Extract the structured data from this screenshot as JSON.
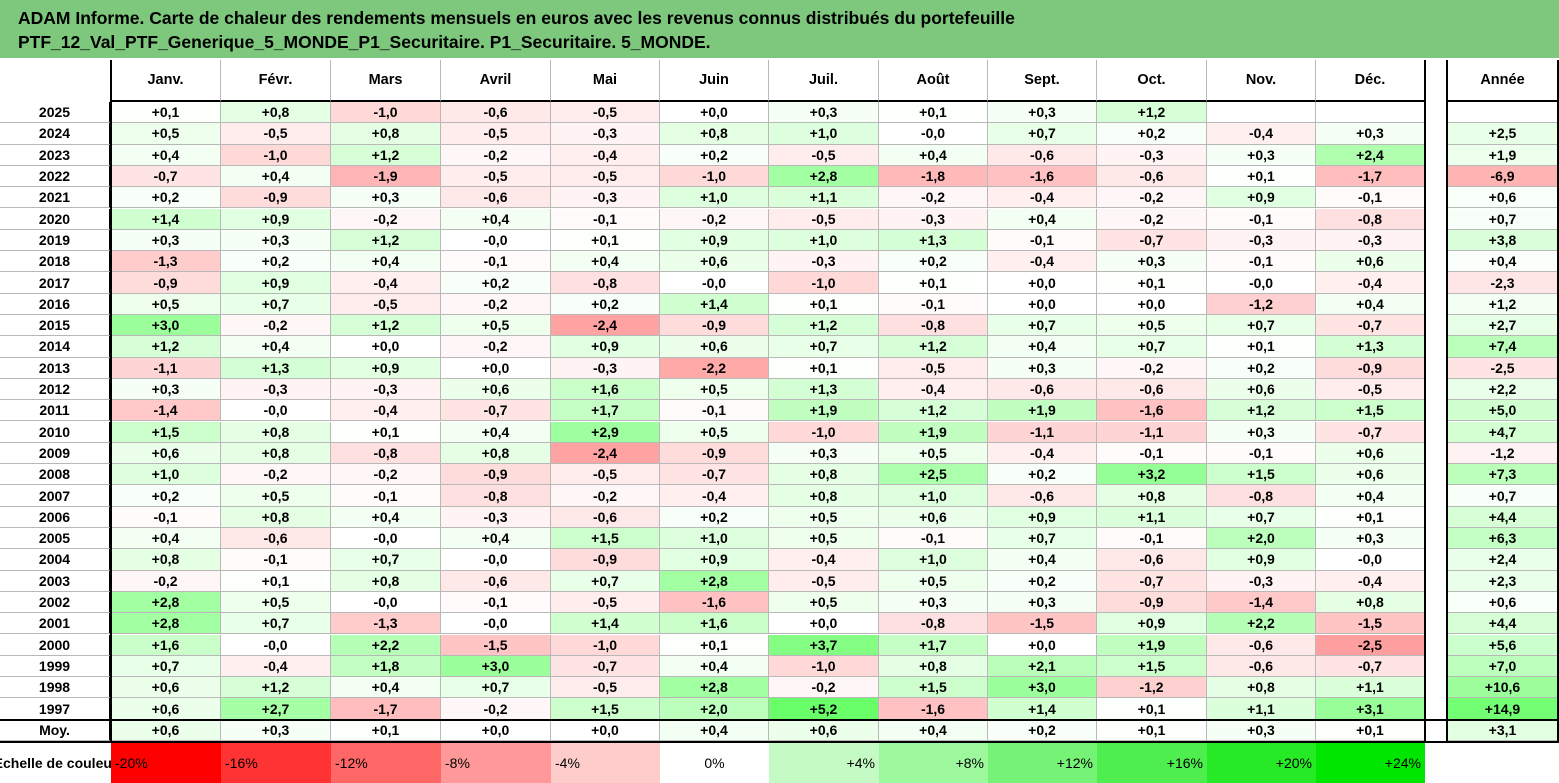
{
  "title": {
    "line1": "ADAM Informe. Carte de chaleur des rendements mensuels en euros avec les revenus connus distribués du portefeuille",
    "line2": "PTF_12_Val_PTF_Generique_5_MONDE_P1_Securitaire. P1_Securitaire. 5_MONDE."
  },
  "colors": {
    "header_bg": "#7ec87e",
    "negative": "#ff0000",
    "positive": "#00e600",
    "neutral": "#ffffff"
  },
  "chart_data": {
    "type": "heatmap",
    "columns": [
      "Janv.",
      "Févr.",
      "Mars",
      "Avril",
      "Mai",
      "Juin",
      "Juil.",
      "Août",
      "Sept.",
      "Oct.",
      "Nov.",
      "Déc."
    ],
    "year_column_label": "Année",
    "rows": [
      {
        "label": "2025",
        "months": [
          "+0,1",
          "+0,8",
          "-1,0",
          "-0,6",
          "-0,5",
          "+0,0",
          "+0,3",
          "+0,1",
          "+0,3",
          "+1,2",
          "",
          ""
        ],
        "year": ""
      },
      {
        "label": "2024",
        "months": [
          "+0,5",
          "-0,5",
          "+0,8",
          "-0,5",
          "-0,3",
          "+0,8",
          "+1,0",
          "-0,0",
          "+0,7",
          "+0,2",
          "-0,4",
          "+0,3"
        ],
        "year": "+2,5"
      },
      {
        "label": "2023",
        "months": [
          "+0,4",
          "-1,0",
          "+1,2",
          "-0,2",
          "-0,4",
          "+0,2",
          "-0,5",
          "+0,4",
          "-0,6",
          "-0,3",
          "+0,3",
          "+2,4"
        ],
        "year": "+1,9"
      },
      {
        "label": "2022",
        "months": [
          "-0,7",
          "+0,4",
          "-1,9",
          "-0,5",
          "-0,5",
          "-1,0",
          "+2,8",
          "-1,8",
          "-1,6",
          "-0,6",
          "+0,1",
          "-1,7"
        ],
        "year": "-6,9"
      },
      {
        "label": "2021",
        "months": [
          "+0,2",
          "-0,9",
          "+0,3",
          "-0,6",
          "-0,3",
          "+1,0",
          "+1,1",
          "-0,2",
          "-0,4",
          "-0,2",
          "+0,9",
          "-0,1"
        ],
        "year": "+0,6"
      },
      {
        "label": "2020",
        "months": [
          "+1,4",
          "+0,9",
          "-0,2",
          "+0,4",
          "-0,1",
          "-0,2",
          "-0,5",
          "-0,3",
          "+0,4",
          "-0,2",
          "-0,1",
          "-0,8"
        ],
        "year": "+0,7"
      },
      {
        "label": "2019",
        "months": [
          "+0,3",
          "+0,3",
          "+1,2",
          "-0,0",
          "+0,1",
          "+0,9",
          "+1,0",
          "+1,3",
          "-0,1",
          "-0,7",
          "-0,3",
          "-0,3"
        ],
        "year": "+3,8"
      },
      {
        "label": "2018",
        "months": [
          "-1,3",
          "+0,2",
          "+0,4",
          "-0,1",
          "+0,4",
          "+0,6",
          "-0,3",
          "+0,2",
          "-0,4",
          "+0,3",
          "-0,1",
          "+0,6"
        ],
        "year": "+0,4"
      },
      {
        "label": "2017",
        "months": [
          "-0,9",
          "+0,9",
          "-0,4",
          "+0,2",
          "-0,8",
          "-0,0",
          "-1,0",
          "+0,1",
          "+0,0",
          "+0,1",
          "-0,0",
          "-0,4"
        ],
        "year": "-2,3"
      },
      {
        "label": "2016",
        "months": [
          "+0,5",
          "+0,7",
          "-0,5",
          "-0,2",
          "+0,2",
          "+1,4",
          "+0,1",
          "-0,1",
          "+0,0",
          "+0,0",
          "-1,2",
          "+0,4"
        ],
        "year": "+1,2"
      },
      {
        "label": "2015",
        "months": [
          "+3,0",
          "-0,2",
          "+1,2",
          "+0,5",
          "-2,4",
          "-0,9",
          "+1,2",
          "-0,8",
          "+0,7",
          "+0,5",
          "+0,7",
          "-0,7"
        ],
        "year": "+2,7"
      },
      {
        "label": "2014",
        "months": [
          "+1,2",
          "+0,4",
          "+0,0",
          "-0,2",
          "+0,9",
          "+0,6",
          "+0,7",
          "+1,2",
          "+0,4",
          "+0,7",
          "+0,1",
          "+1,3"
        ],
        "year": "+7,4"
      },
      {
        "label": "2013",
        "months": [
          "-1,1",
          "+1,3",
          "+0,9",
          "+0,0",
          "-0,3",
          "-2,2",
          "+0,1",
          "-0,5",
          "+0,3",
          "-0,2",
          "+0,2",
          "-0,9"
        ],
        "year": "-2,5"
      },
      {
        "label": "2012",
        "months": [
          "+0,3",
          "-0,3",
          "-0,3",
          "+0,6",
          "+1,6",
          "+0,5",
          "+1,3",
          "-0,4",
          "-0,6",
          "-0,6",
          "+0,6",
          "-0,5"
        ],
        "year": "+2,2"
      },
      {
        "label": "2011",
        "months": [
          "-1,4",
          "-0,0",
          "-0,4",
          "-0,7",
          "+1,7",
          "-0,1",
          "+1,9",
          "+1,2",
          "+1,9",
          "-1,6",
          "+1,2",
          "+1,5"
        ],
        "year": "+5,0"
      },
      {
        "label": "2010",
        "months": [
          "+1,5",
          "+0,8",
          "+0,1",
          "+0,4",
          "+2,9",
          "+0,5",
          "-1,0",
          "+1,9",
          "-1,1",
          "-1,1",
          "+0,3",
          "-0,7"
        ],
        "year": "+4,7"
      },
      {
        "label": "2009",
        "months": [
          "+0,6",
          "+0,8",
          "-0,8",
          "+0,8",
          "-2,4",
          "-0,9",
          "+0,3",
          "+0,5",
          "-0,4",
          "-0,1",
          "-0,1",
          "+0,6"
        ],
        "year": "-1,2"
      },
      {
        "label": "2008",
        "months": [
          "+1,0",
          "-0,2",
          "-0,2",
          "-0,9",
          "-0,5",
          "-0,7",
          "+0,8",
          "+2,5",
          "+0,2",
          "+3,2",
          "+1,5",
          "+0,6"
        ],
        "year": "+7,3"
      },
      {
        "label": "2007",
        "months": [
          "+0,2",
          "+0,5",
          "-0,1",
          "-0,8",
          "-0,2",
          "-0,4",
          "+0,8",
          "+1,0",
          "-0,6",
          "+0,8",
          "-0,8",
          "+0,4"
        ],
        "year": "+0,7"
      },
      {
        "label": "2006",
        "months": [
          "-0,1",
          "+0,8",
          "+0,4",
          "-0,3",
          "-0,6",
          "+0,2",
          "+0,5",
          "+0,6",
          "+0,9",
          "+1,1",
          "+0,7",
          "+0,1"
        ],
        "year": "+4,4"
      },
      {
        "label": "2005",
        "months": [
          "+0,4",
          "-0,6",
          "-0,0",
          "+0,4",
          "+1,5",
          "+1,0",
          "+0,5",
          "-0,1",
          "+0,7",
          "-0,1",
          "+2,0",
          "+0,3"
        ],
        "year": "+6,3"
      },
      {
        "label": "2004",
        "months": [
          "+0,8",
          "-0,1",
          "+0,7",
          "-0,0",
          "-0,9",
          "+0,9",
          "-0,4",
          "+1,0",
          "+0,4",
          "-0,6",
          "+0,9",
          "-0,0"
        ],
        "year": "+2,4"
      },
      {
        "label": "2003",
        "months": [
          "-0,2",
          "+0,1",
          "+0,8",
          "-0,6",
          "+0,7",
          "+2,8",
          "-0,5",
          "+0,5",
          "+0,2",
          "-0,7",
          "-0,3",
          "-0,4"
        ],
        "year": "+2,3"
      },
      {
        "label": "2002",
        "months": [
          "+2,8",
          "+0,5",
          "-0,0",
          "-0,1",
          "-0,5",
          "-1,6",
          "+0,5",
          "+0,3",
          "+0,3",
          "-0,9",
          "-1,4",
          "+0,8"
        ],
        "year": "+0,6"
      },
      {
        "label": "2001",
        "months": [
          "+2,8",
          "+0,7",
          "-1,3",
          "-0,0",
          "+1,4",
          "+1,6",
          "+0,0",
          "-0,8",
          "-1,5",
          "+0,9",
          "+2,2",
          "-1,5"
        ],
        "year": "+4,4"
      },
      {
        "label": "2000",
        "months": [
          "+1,6",
          "-0,0",
          "+2,2",
          "-1,5",
          "-1,0",
          "+0,1",
          "+3,7",
          "+1,7",
          "+0,0",
          "+1,9",
          "-0,6",
          "-2,5"
        ],
        "year": "+5,6"
      },
      {
        "label": "1999",
        "months": [
          "+0,7",
          "-0,4",
          "+1,8",
          "+3,0",
          "-0,7",
          "+0,4",
          "-1,0",
          "+0,8",
          "+2,1",
          "+1,5",
          "-0,6",
          "-0,7"
        ],
        "year": "+7,0"
      },
      {
        "label": "1998",
        "months": [
          "+0,6",
          "+1,2",
          "+0,4",
          "+0,7",
          "-0,5",
          "+2,8",
          "-0,2",
          "+1,5",
          "+3,0",
          "-1,2",
          "+0,8",
          "+1,1"
        ],
        "year": "+10,6"
      },
      {
        "label": "1997",
        "months": [
          "+0,6",
          "+2,7",
          "-1,7",
          "-0,2",
          "+1,5",
          "+2,0",
          "+5,2",
          "-1,6",
          "+1,4",
          "+0,1",
          "+1,1",
          "+3,1"
        ],
        "year": "+14,9"
      },
      {
        "label": "Moy.",
        "months": [
          "+0,6",
          "+0,3",
          "+0,1",
          "+0,0",
          "+0,0",
          "+0,4",
          "+0,6",
          "+0,4",
          "+0,2",
          "+0,1",
          "+0,3",
          "+0,1"
        ],
        "year": "+3,1"
      }
    ],
    "legend": {
      "label": "Echelle de couleur",
      "steps": [
        "-20%",
        "-16%",
        "-12%",
        "-8%",
        "-4%",
        "0%",
        "+4%",
        "+8%",
        "+12%",
        "+16%",
        "+20%",
        "+24%"
      ],
      "step_values": [
        -20,
        -16,
        -12,
        -8,
        -4,
        0,
        4,
        8,
        12,
        16,
        20,
        24
      ]
    }
  }
}
